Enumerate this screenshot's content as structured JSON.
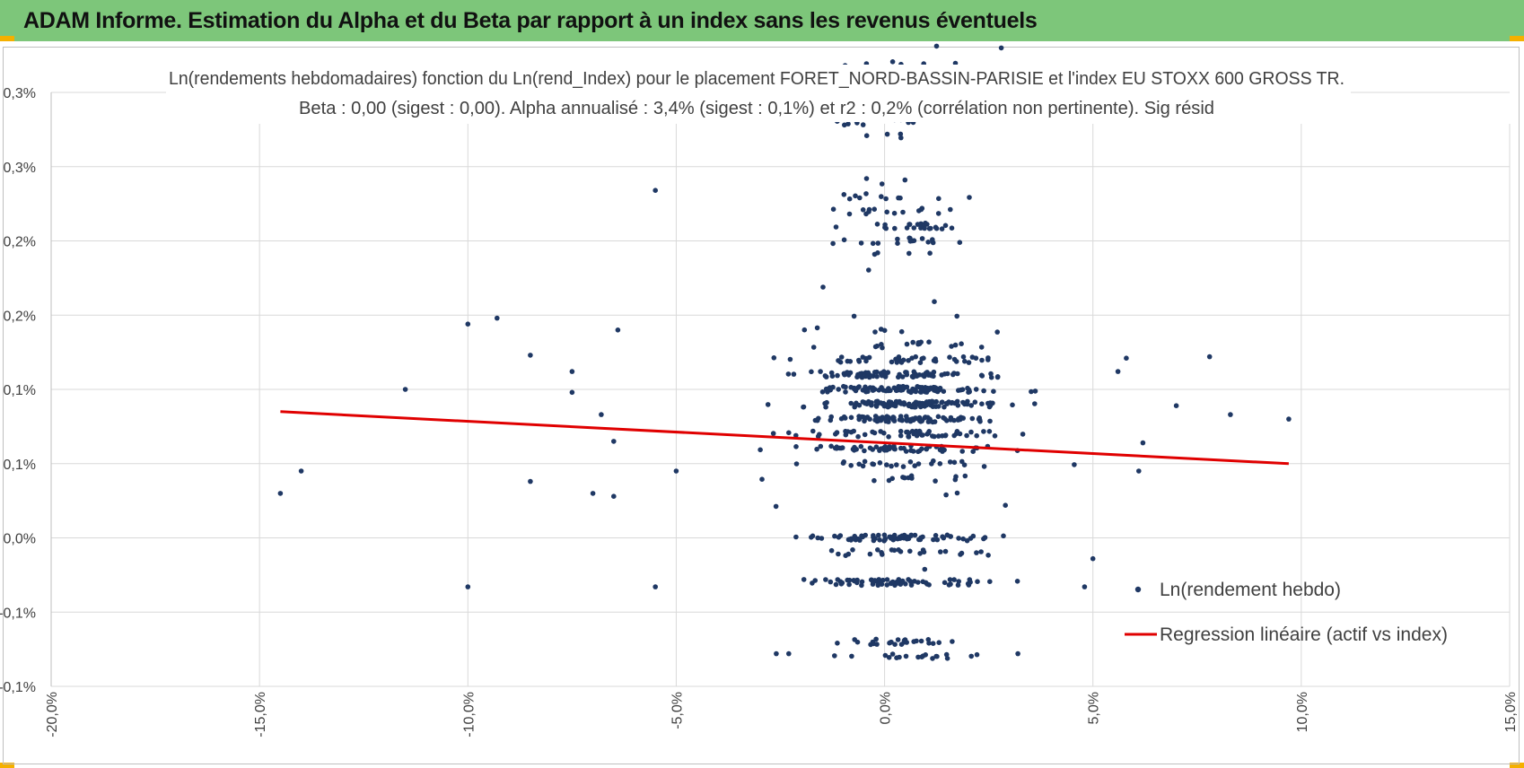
{
  "header": {
    "title": "ADAM Informe. Estimation du Alpha et du Beta par rapport à un index sans les revenus éventuels"
  },
  "colors": {
    "banner": "#7dc67a",
    "accent_corner": "#f5b000",
    "points": "#1f3864",
    "regression": "#e00000",
    "grid": "#d9d9d9"
  },
  "chart_data": {
    "type": "scatter",
    "title_lines": [
      "Ln(rendements hebdomadaires) fonction du Ln(rend_Index) pour le placement FORET_NORD-BASSIN-PARISIE et l'index EU STOXX 600 GROSS TR.",
      "Beta : 0,00 (sigest : 0,00). Alpha annualisé : 3,4% (sigest : 0,1%) et r2 : 0,2% (corrélation non pertinente). Sig résid"
    ],
    "x_ticks": [
      "-20,0%",
      "-15,0%",
      "-10,0%",
      "-5,0%",
      "0,0%",
      "5,0%",
      "10,0%",
      "15,0%"
    ],
    "y_ticks": [
      "-0,1%",
      "-0,1%",
      "0,0%",
      "0,1%",
      "0,1%",
      "0,2%",
      "0,2%",
      "0,3%",
      "0,3%"
    ],
    "xlim": [
      -20,
      15
    ],
    "ylim": [
      -0.1,
      0.3
    ],
    "legend": [
      {
        "label": "Ln(rendement hebdo)",
        "kind": "marker"
      },
      {
        "label": "Regression linéaire (actif vs index)",
        "kind": "line"
      }
    ],
    "regression": {
      "x": [
        -14.5,
        9.7
      ],
      "y": [
        0.085,
        0.05
      ]
    },
    "scatter": {
      "name": "Ln(rendement hebdo)",
      "outliers": [
        {
          "x": -14.5,
          "y": 0.03
        },
        {
          "x": -14.0,
          "y": 0.045
        },
        {
          "x": -11.5,
          "y": 0.1
        },
        {
          "x": -10.0,
          "y": 0.144
        },
        {
          "x": -9.3,
          "y": 0.148
        },
        {
          "x": -10.0,
          "y": -0.033
        },
        {
          "x": -8.5,
          "y": 0.123
        },
        {
          "x": -8.5,
          "y": 0.038
        },
        {
          "x": -7.5,
          "y": 0.112
        },
        {
          "x": -7.5,
          "y": 0.098
        },
        {
          "x": -7.0,
          "y": 0.03
        },
        {
          "x": -6.8,
          "y": 0.083
        },
        {
          "x": -6.5,
          "y": 0.028
        },
        {
          "x": -6.5,
          "y": 0.065
        },
        {
          "x": -6.4,
          "y": 0.14
        },
        {
          "x": -5.5,
          "y": 0.234
        },
        {
          "x": -5.5,
          "y": -0.033
        },
        {
          "x": -4.5,
          "y": 0.308
        },
        {
          "x": -5.0,
          "y": 0.045
        },
        {
          "x": 5.6,
          "y": 0.112
        },
        {
          "x": 5.8,
          "y": 0.121
        },
        {
          "x": 6.1,
          "y": 0.045
        },
        {
          "x": 6.2,
          "y": 0.064
        },
        {
          "x": 7.0,
          "y": 0.089
        },
        {
          "x": 7.8,
          "y": 0.122
        },
        {
          "x": 8.3,
          "y": 0.083
        },
        {
          "x": 9.7,
          "y": 0.08
        },
        {
          "x": 5.0,
          "y": -0.014
        },
        {
          "x": 4.8,
          "y": -0.033
        },
        {
          "x": 3.2,
          "y": -0.078
        },
        {
          "x": -2.6,
          "y": -0.078
        },
        {
          "x": -2.3,
          "y": -0.078
        },
        {
          "x": 2.8,
          "y": 0.33
        }
      ],
      "clusters": [
        {
          "cx": 0.5,
          "cy": 0.09,
          "sx": 1.4,
          "sy": 0.032,
          "n": 430
        },
        {
          "cx": 0.5,
          "cy": 0.09,
          "sx": 2.4,
          "sy": 0.045,
          "n": 170
        },
        {
          "cx": 0.4,
          "cy": 0.0,
          "sx": 1.6,
          "sy": 0.001,
          "n": 70
        },
        {
          "cx": 0.4,
          "cy": -0.033,
          "sx": 1.7,
          "sy": 0.001,
          "n": 70
        },
        {
          "cx": 0.4,
          "cy": -0.014,
          "sx": 1.3,
          "sy": 0.001,
          "n": 25
        },
        {
          "cx": 0.5,
          "cy": -0.075,
          "sx": 1.0,
          "sy": 0.004,
          "n": 45
        },
        {
          "cx": 0.5,
          "cy": 0.21,
          "sx": 1.1,
          "sy": 0.018,
          "n": 75
        },
        {
          "cx": 0.2,
          "cy": 0.3,
          "sx": 1.1,
          "sy": 0.02,
          "n": 75
        }
      ]
    }
  }
}
